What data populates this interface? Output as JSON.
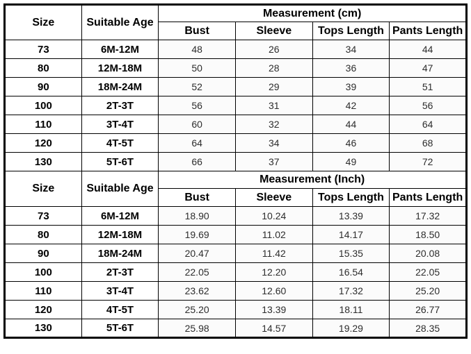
{
  "chart_data": [
    {
      "type": "table",
      "title": "Measurement (cm)",
      "header": {
        "size": "Size",
        "age": "Suitable Age",
        "group": "Measurement (cm)",
        "columns": [
          "Bust",
          "Sleeve",
          "Tops Length",
          "Pants Length"
        ]
      },
      "rows": [
        [
          "73",
          "6M-12M",
          "48",
          "26",
          "34",
          "44"
        ],
        [
          "80",
          "12M-18M",
          "50",
          "28",
          "36",
          "47"
        ],
        [
          "90",
          "18M-24M",
          "52",
          "29",
          "39",
          "51"
        ],
        [
          "100",
          "2T-3T",
          "56",
          "31",
          "42",
          "56"
        ],
        [
          "110",
          "3T-4T",
          "60",
          "32",
          "44",
          "64"
        ],
        [
          "120",
          "4T-5T",
          "64",
          "34",
          "46",
          "68"
        ],
        [
          "130",
          "5T-6T",
          "66",
          "37",
          "49",
          "72"
        ]
      ]
    },
    {
      "type": "table",
      "title": "Measurement (Inch)",
      "header": {
        "size": "Size",
        "age": "Suitable Age",
        "group": "Measurement (Inch)",
        "columns": [
          "Bust",
          "Sleeve",
          "Tops Length",
          "Pants Length"
        ]
      },
      "rows": [
        [
          "73",
          "6M-12M",
          "18.90",
          "10.24",
          "13.39",
          "17.32"
        ],
        [
          "80",
          "12M-18M",
          "19.69",
          "11.02",
          "14.17",
          "18.50"
        ],
        [
          "90",
          "18M-24M",
          "20.47",
          "11.42",
          "15.35",
          "20.08"
        ],
        [
          "100",
          "2T-3T",
          "22.05",
          "12.20",
          "16.54",
          "22.05"
        ],
        [
          "110",
          "3T-4T",
          "23.62",
          "12.60",
          "17.32",
          "25.20"
        ],
        [
          "120",
          "4T-5T",
          "25.20",
          "13.39",
          "18.11",
          "26.77"
        ],
        [
          "130",
          "5T-6T",
          "25.98",
          "14.57",
          "19.29",
          "28.35"
        ]
      ]
    }
  ],
  "colors": {
    "border": "#000000",
    "header_text": "#000000",
    "value_text": "#2d2d2d",
    "background": "#ffffff"
  }
}
